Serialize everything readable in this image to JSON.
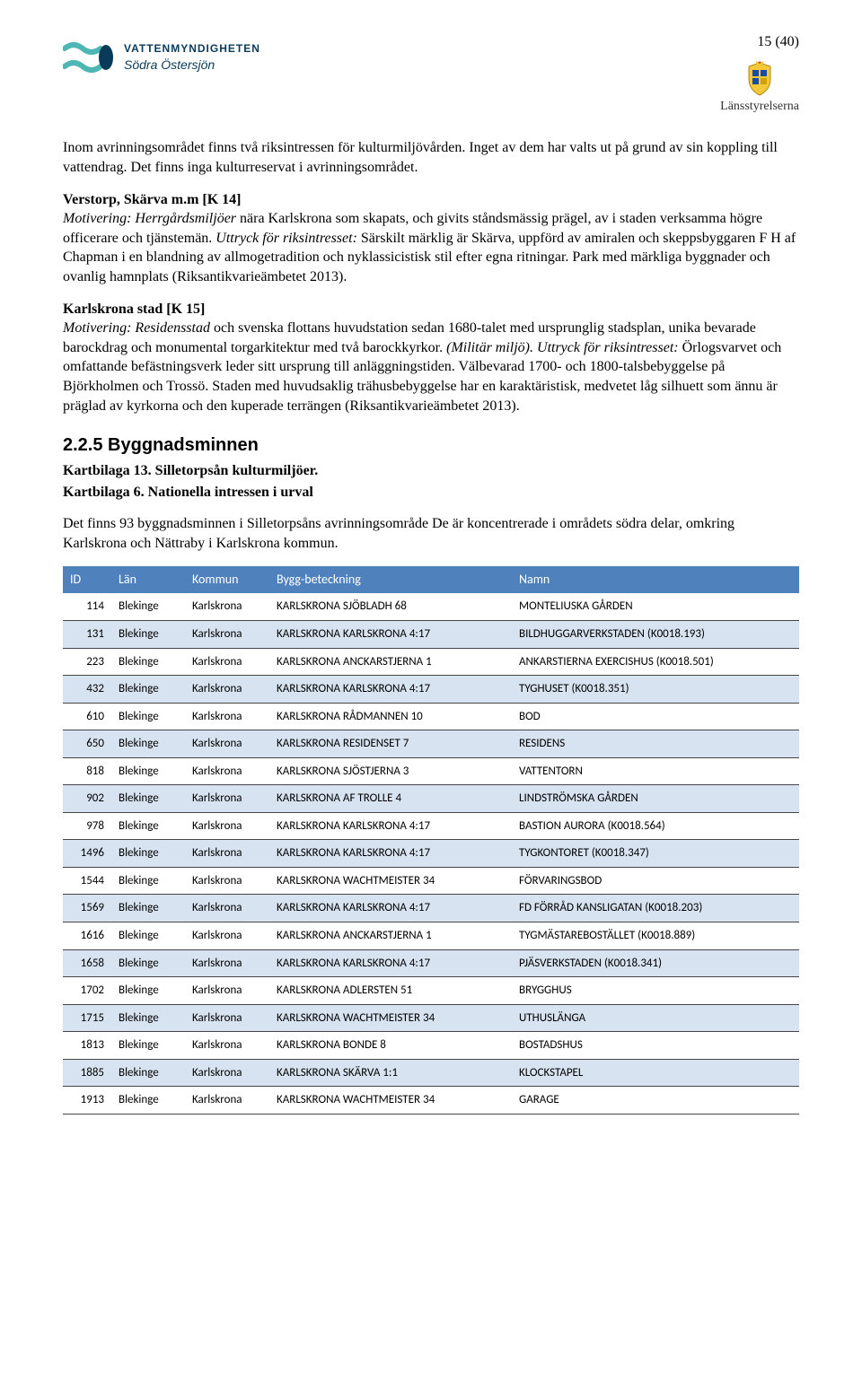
{
  "pageNumber": "15 (40)",
  "logoLeft": {
    "line1": "VATTENMYNDIGHETEN",
    "line2": "Södra Östersjön",
    "color_dark": "#0a3a5a",
    "color_teal": "#4fb7b3"
  },
  "logoRight": {
    "label": "Länsstyrelserna"
  },
  "paragraphs": {
    "intro": "Inom avrinningsområdet finns två riksintressen för kulturmiljövården. Inget av dem har valts ut på grund av sin koppling till vattendrag. Det finns inga kulturreservat i avrinningsområdet.",
    "verstorp_head": "Verstorp, Skärva m.m [K 14]",
    "verstorp_body": "Motivering: Herrgårdsmiljöer nära Karlskrona som skapats, och givits ståndsmässig prägel, av i staden verksamma högre officerare och tjänstemän. Uttryck för riksintresset: Särskilt märklig är Skärva, uppförd av amiralen och skeppsbyggaren F H af Chapman i en blandning av allmogetradition och nyklassicistisk stil efter egna ritningar. Park med märkliga byggnader och ovanlig hamnplats (Riksantikvarieämbetet 2013).",
    "karlskrona_head": "Karlskrona stad [K 15]",
    "karlskrona_body": "Motivering: Residensstad och svenska flottans huvudstation sedan 1680-talet med ursprunglig stadsplan, unika bevarade barockdrag och monumental torgarkitektur med två barockkyrkor. (Militär miljö). Uttryck för riksintresset: Örlogsvarvet och omfattande befästningsverk leder sitt ursprung till anläggningstiden. Välbevarad 1700- och 1800-talsbebyggelse på Björkholmen och Trossö. Staden med huvudsaklig trähusbebyggelse har en karaktäristisk, medvetet låg silhuett som ännu är präglad av kyrkorna och den kuperade terrängen (Riksantikvarieämbetet 2013)."
  },
  "section": {
    "num_title": "2.2.5 Byggnadsminnen",
    "kb13": "Kartbilaga 13. Silletorpsån kulturmiljöer.",
    "kb6": "Kartbilaga 6. Nationella intressen i urval",
    "desc": "Det finns 93 byggnadsminnen i Silletorpsåns avrinningsområde De är koncentrerade i områdets södra delar, omkring Karlskrona och Nättraby i Karlskrona kommun."
  },
  "table": {
    "header_bg": "#4f81bd",
    "alt_bg": "#d7e3f0",
    "columns": [
      "ID",
      "Län",
      "Kommun",
      "Bygg-beteckning",
      "Namn"
    ],
    "rows": [
      [
        "114",
        "Blekinge",
        "Karlskrona",
        "KARLSKRONA SJÖBLADH 68",
        "MONTELIUSKA GÅRDEN"
      ],
      [
        "131",
        "Blekinge",
        "Karlskrona",
        "KARLSKRONA KARLSKRONA 4:17",
        "BILDHUGGARVERKSTADEN (K0018.193)"
      ],
      [
        "223",
        "Blekinge",
        "Karlskrona",
        "KARLSKRONA ANCKARSTJERNA 1",
        "ANKARSTIERNA EXERCISHUS (K0018.501)"
      ],
      [
        "432",
        "Blekinge",
        "Karlskrona",
        "KARLSKRONA KARLSKRONA 4:17",
        "TYGHUSET (K0018.351)"
      ],
      [
        "610",
        "Blekinge",
        "Karlskrona",
        "KARLSKRONA RÅDMANNEN 10",
        "BOD"
      ],
      [
        "650",
        "Blekinge",
        "Karlskrona",
        "KARLSKRONA RESIDENSET 7",
        "RESIDENS"
      ],
      [
        "818",
        "Blekinge",
        "Karlskrona",
        "KARLSKRONA SJÖSTJERNA 3",
        "VATTENTORN"
      ],
      [
        "902",
        "Blekinge",
        "Karlskrona",
        "KARLSKRONA AF TROLLE 4",
        "LINDSTRÖMSKA GÅRDEN"
      ],
      [
        "978",
        "Blekinge",
        "Karlskrona",
        "KARLSKRONA KARLSKRONA 4:17",
        "BASTION AURORA (K0018.564)"
      ],
      [
        "1496",
        "Blekinge",
        "Karlskrona",
        "KARLSKRONA KARLSKRONA 4:17",
        "TYGKONTORET (K0018.347)"
      ],
      [
        "1544",
        "Blekinge",
        "Karlskrona",
        "KARLSKRONA WACHTMEISTER 34",
        "FÖRVARINGSBOD"
      ],
      [
        "1569",
        "Blekinge",
        "Karlskrona",
        "KARLSKRONA KARLSKRONA 4:17",
        "FD FÖRRÅD KANSLIGATAN (K0018.203)"
      ],
      [
        "1616",
        "Blekinge",
        "Karlskrona",
        "KARLSKRONA ANCKARSTJERNA 1",
        "TYGMÄSTAREBOSTÄLLET (K0018.889)"
      ],
      [
        "1658",
        "Blekinge",
        "Karlskrona",
        "KARLSKRONA KARLSKRONA 4:17",
        "PJÄSVERKSTADEN (K0018.341)"
      ],
      [
        "1702",
        "Blekinge",
        "Karlskrona",
        "KARLSKRONA ADLERSTEN 51",
        "BRYGGHUS"
      ],
      [
        "1715",
        "Blekinge",
        "Karlskrona",
        "KARLSKRONA WACHTMEISTER 34",
        "UTHUSLÄNGA"
      ],
      [
        "1813",
        "Blekinge",
        "Karlskrona",
        "KARLSKRONA BONDE 8",
        "BOSTADSHUS"
      ],
      [
        "1885",
        "Blekinge",
        "Karlskrona",
        "KARLSKRONA SKÄRVA 1:1",
        "KLOCKSTAPEL"
      ],
      [
        "1913",
        "Blekinge",
        "Karlskrona",
        "KARLSKRONA WACHTMEISTER 34",
        "GARAGE"
      ]
    ]
  }
}
